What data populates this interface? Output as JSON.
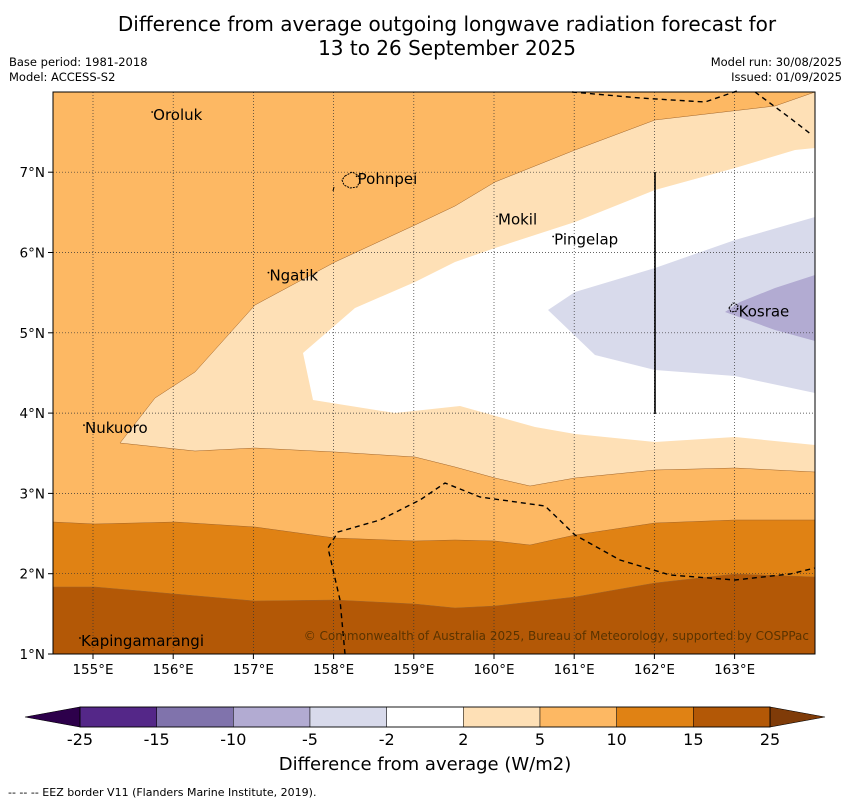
{
  "title": {
    "line1": "Difference from average outgoing longwave radiation forecast for",
    "line2": "13 to 26 September 2025"
  },
  "meta": {
    "base_period": "Base period: 1981-2018",
    "model": "Model: ACCESS-S2",
    "model_run": "Model run: 30/08/2025",
    "issued": "Issued: 01/09/2025"
  },
  "map": {
    "lon_ticks": [
      "155°E",
      "156°E",
      "157°E",
      "158°E",
      "159°E",
      "160°E",
      "161°E",
      "162°E",
      "163°E"
    ],
    "lat_ticks": [
      "1°N",
      "2°N",
      "3°N",
      "4°N",
      "5°N",
      "6°N",
      "7°N"
    ],
    "places": [
      {
        "name": "Oroluk",
        "lon": 155.75,
        "lat": 7.65
      },
      {
        "name": "Pohnpei",
        "lon": 158.3,
        "lat": 6.85
      },
      {
        "name": "Mokil",
        "lon": 160.05,
        "lat": 6.35
      },
      {
        "name": "Pingelap",
        "lon": 160.75,
        "lat": 6.1
      },
      {
        "name": "Ngatik",
        "lon": 157.2,
        "lat": 5.65
      },
      {
        "name": "Kosrae",
        "lon": 163.05,
        "lat": 5.2
      },
      {
        "name": "Nukuoro",
        "lon": 154.9,
        "lat": 3.75
      },
      {
        "name": "Kapingamarangi",
        "lon": 154.85,
        "lat": 1.1
      }
    ],
    "copyright": "© Commonwealth of Australia 2025, Bureau of Meteorology, supported by COSPPac"
  },
  "colorbar": {
    "ticks": [
      "-25",
      "-15",
      "-10",
      "-5",
      "-2",
      "2",
      "5",
      "10",
      "15",
      "25"
    ],
    "colors": [
      "#542788",
      "#8073ac",
      "#b2abd2",
      "#d8daeb",
      "#ffffff",
      "#fee0b6",
      "#fdb863",
      "#e08214",
      "#b35806"
    ],
    "under_color": "#2d004b",
    "over_color": "#7f3b08",
    "label": "Difference from average (W/m2)"
  },
  "legend": {
    "text": "-- -- -- EEZ border V11 (Flanders Marine Institute, 2019)."
  }
}
